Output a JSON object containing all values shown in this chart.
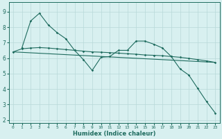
{
  "xlabel": "Humidex (Indice chaleur)",
  "background_color": "#d8f0f0",
  "grid_color": "#b8d8d8",
  "line_color": "#1e6b5e",
  "xlim": [
    -0.5,
    23.5
  ],
  "ylim": [
    1.8,
    9.6
  ],
  "yticks": [
    2,
    3,
    4,
    5,
    6,
    7,
    8,
    9
  ],
  "xticks": [
    0,
    1,
    2,
    3,
    4,
    5,
    6,
    7,
    8,
    9,
    10,
    11,
    12,
    13,
    14,
    15,
    16,
    17,
    18,
    19,
    20,
    21,
    22,
    23
  ],
  "series1_x": [
    1,
    2,
    3,
    4,
    5,
    6,
    7,
    8,
    9,
    10,
    11,
    12,
    13,
    14,
    15,
    16,
    17,
    18,
    19,
    20,
    21,
    22,
    23
  ],
  "series1_y": [
    6.65,
    8.4,
    8.9,
    8.15,
    7.65,
    7.25,
    6.5,
    5.9,
    5.2,
    6.05,
    6.1,
    6.5,
    6.5,
    7.1,
    7.1,
    6.9,
    6.65,
    6.1,
    5.3,
    4.9,
    4.05,
    3.2,
    2.45
  ],
  "series2_x": [
    0,
    1,
    2,
    3,
    4,
    5,
    6,
    7,
    8,
    9,
    10,
    11,
    12,
    13,
    14,
    15,
    16,
    17,
    18,
    19,
    20,
    21,
    22,
    23
  ],
  "series2_y": [
    6.4,
    6.6,
    6.65,
    6.68,
    6.65,
    6.6,
    6.55,
    6.5,
    6.45,
    6.4,
    6.38,
    6.35,
    6.32,
    6.28,
    6.25,
    6.2,
    6.18,
    6.15,
    6.1,
    6.05,
    5.98,
    5.9,
    5.82,
    5.72
  ],
  "series3_x": [
    0,
    23
  ],
  "series3_y": [
    6.4,
    5.72
  ]
}
